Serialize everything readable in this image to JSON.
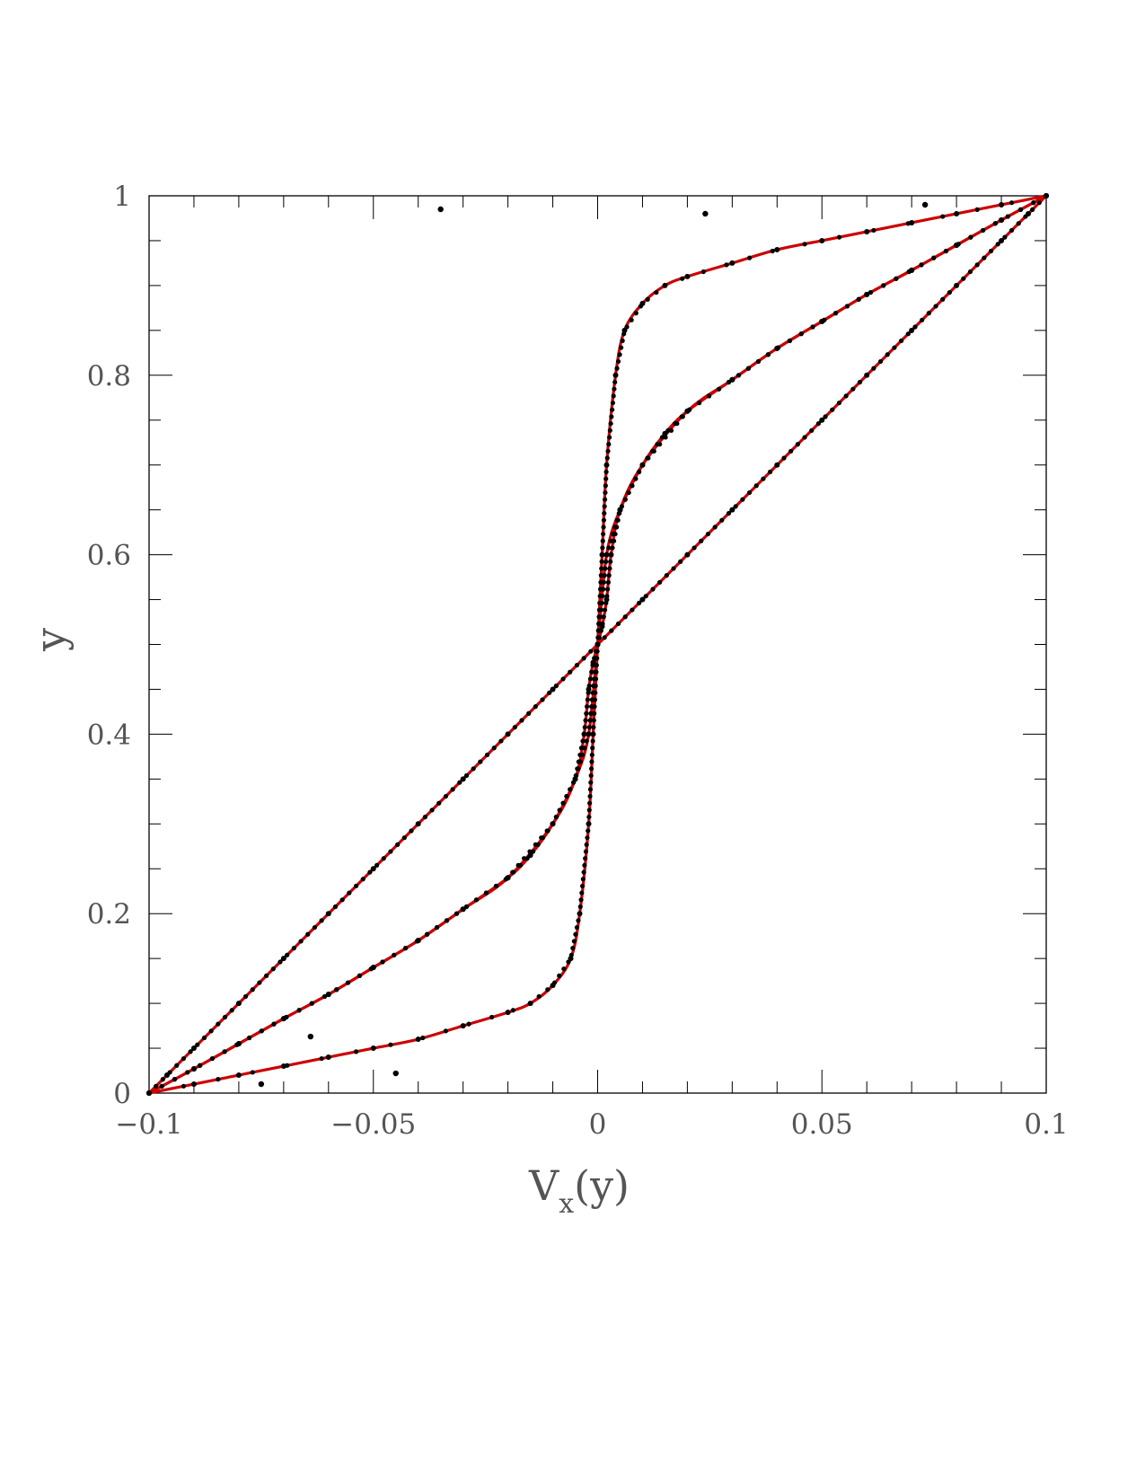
{
  "chart_data": {
    "type": "line",
    "title": "",
    "xlabel": "V",
    "xlabel_subscript": "x",
    "xlabel_suffix": "(y)",
    "ylabel": "y",
    "xlim": [
      -0.1,
      0.1
    ],
    "ylim": [
      0,
      1
    ],
    "x_ticks": [
      {
        "value": -0.1,
        "label": "−0.1"
      },
      {
        "value": -0.05,
        "label": "−0.05"
      },
      {
        "value": 0,
        "label": "0"
      },
      {
        "value": 0.05,
        "label": "0.05"
      },
      {
        "value": 0.1,
        "label": "0.1"
      }
    ],
    "y_ticks": [
      {
        "value": 0,
        "label": "0"
      },
      {
        "value": 0.2,
        "label": "0.2"
      },
      {
        "value": 0.4,
        "label": "0.4"
      },
      {
        "value": 0.6,
        "label": "0.6"
      },
      {
        "value": 0.8,
        "label": "0.8"
      },
      {
        "value": 1,
        "label": "1"
      }
    ],
    "grid": false,
    "legend": "none",
    "colors": {
      "fit_line": "#cc0000",
      "points": "#000000",
      "axes": "#000000",
      "text": "#555555"
    },
    "series": [
      {
        "style": "red line with black points",
        "x": [
          -0.1,
          -0.096,
          -0.09,
          -0.08,
          -0.07,
          -0.06,
          -0.05,
          -0.04,
          -0.03,
          -0.02,
          -0.01,
          0,
          0.01,
          0.02,
          0.03,
          0.04,
          0.05,
          0.06,
          0.07,
          0.08,
          0.09,
          0.096,
          0.1
        ],
        "y": [
          0,
          0.02,
          0.05,
          0.1,
          0.15,
          0.2,
          0.25,
          0.3,
          0.35,
          0.4,
          0.45,
          0.5,
          0.55,
          0.6,
          0.65,
          0.7,
          0.75,
          0.8,
          0.85,
          0.9,
          0.95,
          0.98,
          1
        ]
      },
      {
        "style": "red line with black points",
        "x": [
          -0.1,
          -0.09,
          -0.08,
          -0.07,
          -0.06,
          -0.05,
          -0.04,
          -0.03,
          -0.02,
          -0.015,
          -0.01,
          -0.005,
          -0.002,
          0,
          0.002,
          0.005,
          0.01,
          0.015,
          0.02,
          0.03,
          0.04,
          0.05,
          0.06,
          0.07,
          0.08,
          0.09,
          0.1
        ],
        "y": [
          0,
          0.027,
          0.055,
          0.083,
          0.11,
          0.14,
          0.17,
          0.205,
          0.24,
          0.265,
          0.3,
          0.35,
          0.4,
          0.5,
          0.6,
          0.65,
          0.7,
          0.735,
          0.76,
          0.795,
          0.83,
          0.86,
          0.89,
          0.917,
          0.945,
          0.973,
          1
        ]
      },
      {
        "style": "red line with black points",
        "x": [
          -0.1,
          -0.09,
          -0.08,
          -0.07,
          -0.06,
          -0.05,
          -0.04,
          -0.03,
          -0.02,
          -0.015,
          -0.01,
          -0.006,
          -0.004,
          -0.002,
          -0.001,
          0,
          0.001,
          0.002,
          0.004,
          0.006,
          0.01,
          0.015,
          0.02,
          0.03,
          0.04,
          0.05,
          0.06,
          0.07,
          0.08,
          0.09,
          0.1
        ],
        "y": [
          0,
          0.01,
          0.02,
          0.03,
          0.04,
          0.05,
          0.06,
          0.075,
          0.09,
          0.1,
          0.12,
          0.15,
          0.2,
          0.3,
          0.4,
          0.5,
          0.6,
          0.7,
          0.8,
          0.85,
          0.88,
          0.9,
          0.91,
          0.925,
          0.94,
          0.95,
          0.96,
          0.97,
          0.98,
          0.99,
          1
        ]
      },
      {
        "style": "red line with black points",
        "x": [
          -0.1,
          -0.09,
          -0.08,
          -0.07,
          -0.06,
          -0.05,
          -0.04,
          -0.03,
          -0.02,
          -0.01,
          -0.005,
          -0.003,
          -0.002,
          -0.001,
          0,
          0.001,
          0.002,
          0.003,
          0.005,
          0.01,
          0.02,
          0.03,
          0.04,
          0.05,
          0.06,
          0.07,
          0.08,
          0.09,
          0.1
        ],
        "y": [
          0,
          0.027,
          0.055,
          0.083,
          0.11,
          0.14,
          0.17,
          0.205,
          0.24,
          0.3,
          0.35,
          0.4,
          0.45,
          0.48,
          0.5,
          0.52,
          0.55,
          0.6,
          0.65,
          0.7,
          0.76,
          0.795,
          0.83,
          0.86,
          0.89,
          0.917,
          0.945,
          0.973,
          1
        ]
      }
    ],
    "outlier_points": {
      "x": [
        -0.035,
        0.024,
        0.073,
        -0.045,
        -0.075,
        -0.064
      ],
      "y": [
        0.985,
        0.98,
        0.99,
        0.022,
        0.01,
        0.063
      ]
    }
  }
}
